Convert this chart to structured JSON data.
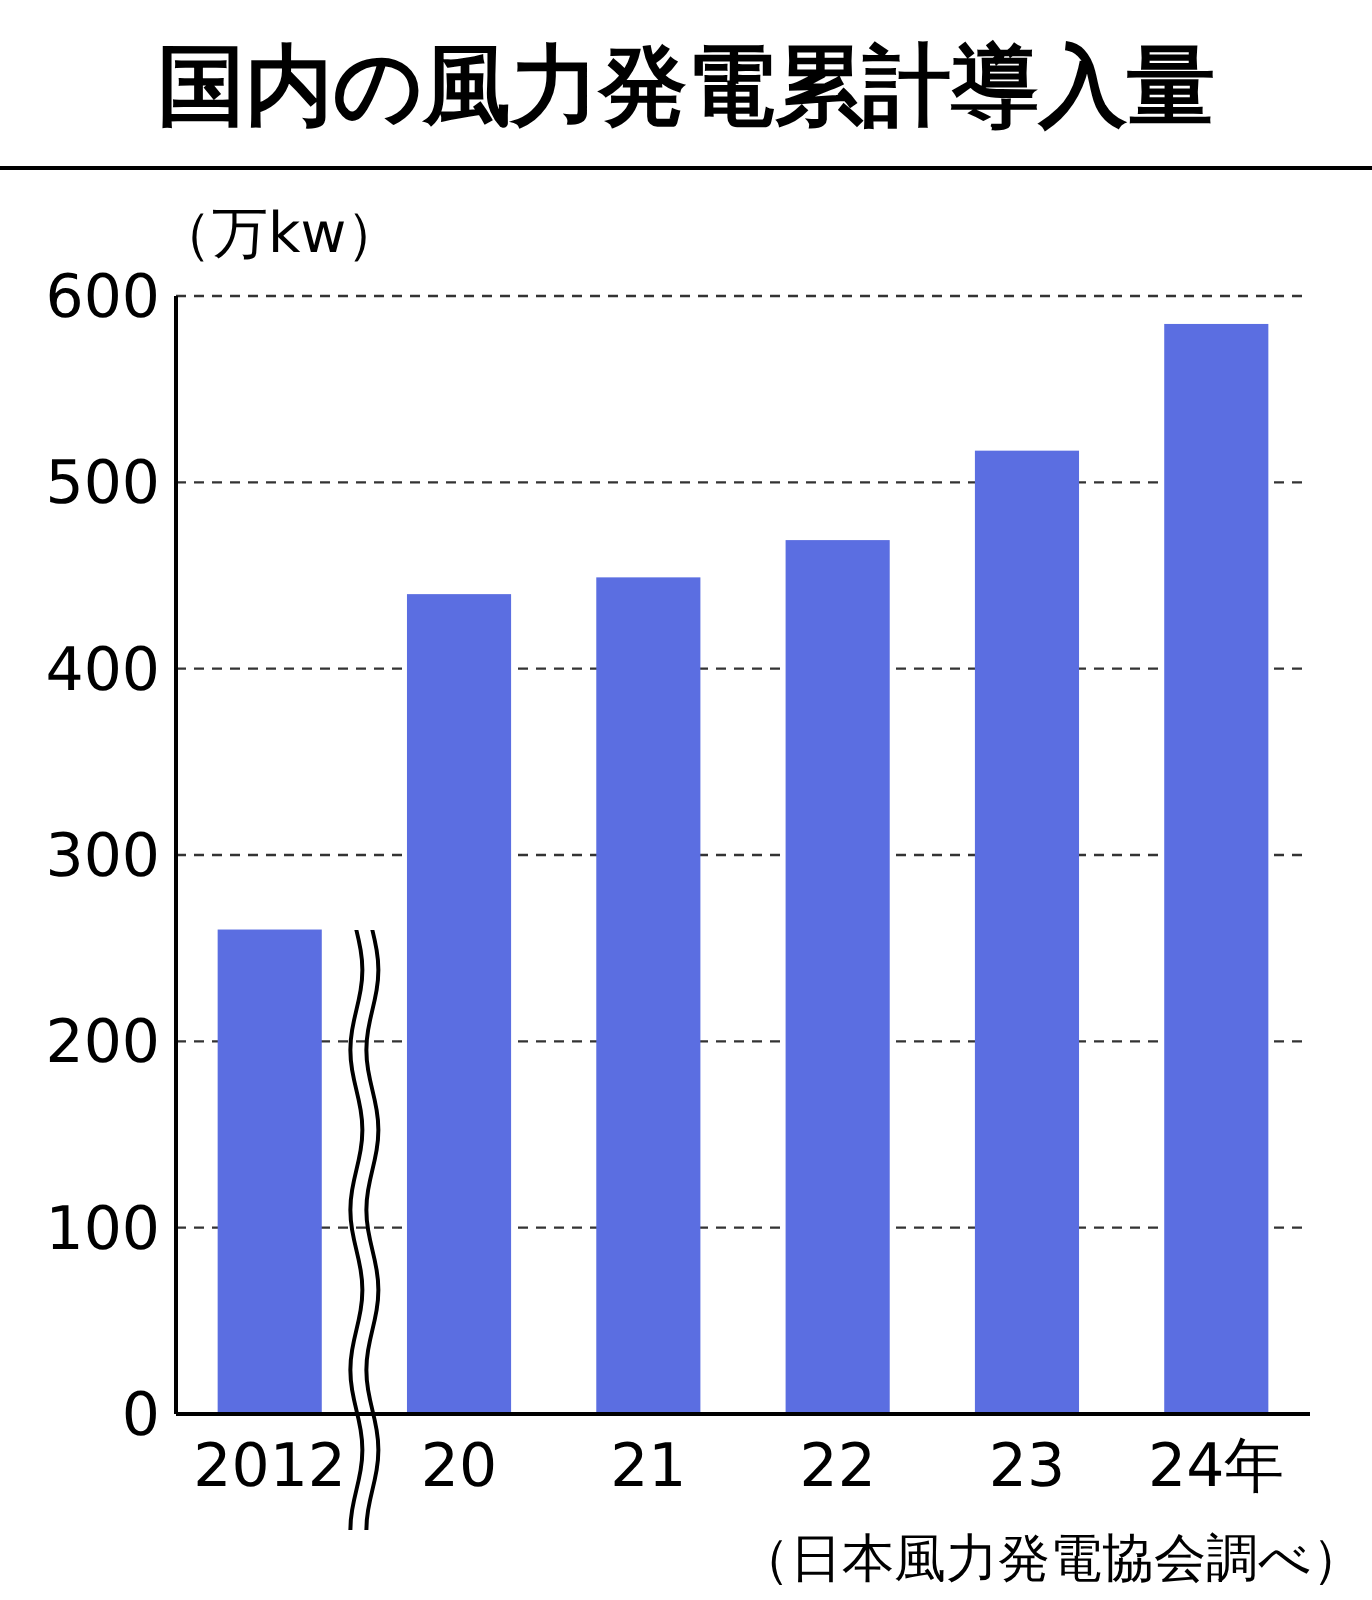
{
  "chart_data": {
    "type": "bar",
    "title": "国内の風力発電累計導入量",
    "ylabel": "（万kw）",
    "categories": [
      "2012",
      "20",
      "21",
      "22",
      "23",
      "24年"
    ],
    "values": [
      260,
      440,
      449,
      469,
      517,
      585
    ],
    "color": "#5b6ee1",
    "ylim": [
      0,
      600
    ],
    "yticks": [
      0,
      100,
      200,
      300,
      400,
      500,
      600
    ],
    "grid": "y",
    "annotations": [
      "（日本風力発電協会調べ）"
    ]
  }
}
